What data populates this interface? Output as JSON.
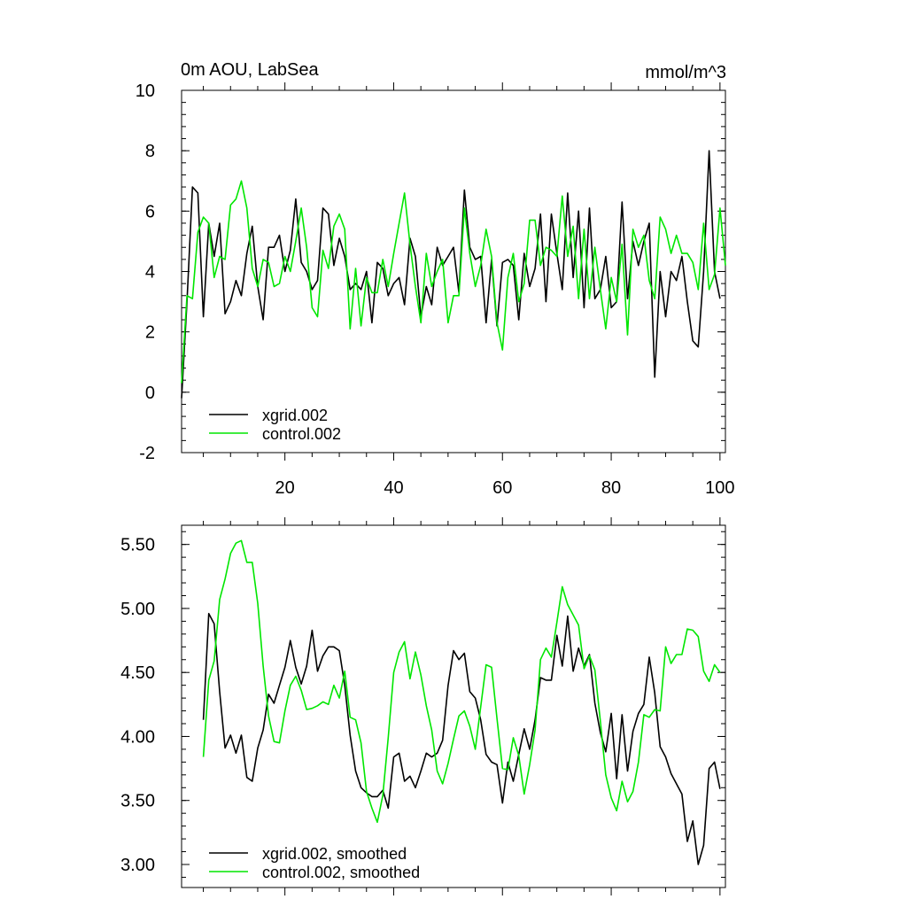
{
  "chart_data": [
    {
      "type": "line",
      "title": "0m AOU, LabSea",
      "units": "mmol/m^3",
      "xlim": [
        1,
        101
      ],
      "ylim": [
        -2,
        10
      ],
      "x_ticks": [
        20,
        40,
        60,
        80,
        100
      ],
      "x_tick_labels": [
        "20",
        "40",
        "60",
        "80",
        "100"
      ],
      "y_ticks": [
        -2,
        0,
        2,
        4,
        6,
        8,
        10
      ],
      "y_tick_labels": [
        "-2",
        "0",
        "2",
        "4",
        "6",
        "8",
        "10"
      ],
      "x_start": 1,
      "legend_position": "bottom-left",
      "grid": false,
      "series": [
        {
          "name": "xgrid.002",
          "color": "#000000",
          "values": [
            -0.2,
            3.0,
            6.8,
            6.6,
            2.5,
            5.6,
            4.5,
            5.6,
            2.6,
            3.0,
            3.7,
            3.2,
            4.6,
            5.5,
            3.5,
            2.4,
            4.8,
            4.8,
            5.2,
            4.0,
            4.7,
            6.4,
            4.3,
            4.0,
            3.4,
            3.7,
            6.1,
            5.9,
            4.2,
            5.1,
            4.5,
            3.4,
            3.6,
            3.4,
            4.0,
            2.3,
            4.3,
            4.1,
            3.2,
            3.6,
            3.8,
            2.9,
            5.1,
            4.5,
            2.5,
            3.5,
            2.9,
            4.8,
            4.2,
            4.5,
            4.8,
            3.3,
            6.7,
            4.8,
            4.4,
            4.5,
            2.3,
            4.4,
            2.2,
            4.3,
            4.4,
            4.2,
            2.4,
            4.6,
            3.5,
            4.1,
            5.9,
            3.0,
            5.9,
            4.6,
            3.4,
            6.6,
            3.8,
            6.0,
            2.8,
            6.1,
            3.1,
            3.4,
            4.5,
            2.8,
            3.0,
            6.3,
            3.1,
            5.0,
            4.2,
            5.0,
            5.6,
            0.5,
            4.0,
            2.5,
            4.0,
            3.7,
            4.5,
            3.0,
            1.7,
            1.5,
            4.0,
            8.0,
            4.0,
            3.1
          ]
        },
        {
          "name": "control.002",
          "color": "#00e600",
          "values": [
            0.3,
            3.2,
            3.1,
            5.3,
            5.8,
            5.6,
            3.8,
            4.5,
            4.4,
            6.2,
            6.4,
            7.0,
            6.1,
            4.1,
            3.5,
            4.4,
            4.3,
            3.5,
            3.6,
            4.5,
            4.0,
            5.0,
            6.1,
            4.8,
            2.8,
            2.5,
            4.7,
            4.1,
            5.5,
            5.9,
            5.4,
            2.1,
            4.1,
            2.2,
            3.8,
            3.3,
            3.3,
            4.4,
            3.5,
            4.6,
            5.6,
            6.6,
            4.9,
            3.5,
            2.3,
            4.6,
            3.5,
            4.0,
            4.4,
            2.3,
            3.2,
            3.2,
            6.1,
            4.6,
            3.5,
            4.2,
            5.4,
            4.5,
            2.3,
            1.4,
            3.8,
            4.6,
            3.0,
            3.6,
            5.7,
            5.7,
            4.2,
            4.8,
            4.7,
            4.5,
            6.5,
            4.5,
            5.5,
            3.1,
            5.4,
            3.1,
            4.8,
            3.4,
            2.1,
            3.8,
            3.0,
            4.9,
            1.9,
            5.4,
            4.8,
            5.2,
            3.7,
            3.1,
            5.8,
            5.4,
            4.6,
            5.2,
            4.6,
            4.6,
            4.3,
            3.4,
            5.6,
            3.4,
            3.9,
            6.1,
            4.2
          ]
        }
      ]
    },
    {
      "type": "line",
      "xlim": [
        1,
        101
      ],
      "ylim": [
        2.82,
        5.65
      ],
      "x_ticks": [
        20,
        40,
        60,
        80,
        100
      ],
      "x_tick_labels": [
        "",
        "",
        "",
        "",
        ""
      ],
      "y_ticks": [
        3.0,
        3.5,
        4.0,
        4.5,
        5.0,
        5.5
      ],
      "y_tick_labels": [
        "3.00",
        "3.50",
        "4.00",
        "4.50",
        "5.00",
        "5.50"
      ],
      "x_start": 5,
      "legend_position": "bottom-left",
      "grid": false,
      "series": [
        {
          "name": "xgrid.002, smoothed",
          "color": "#000000",
          "values": [
            4.13,
            4.96,
            4.88,
            4.35,
            3.91,
            4.01,
            3.87,
            4.01,
            3.68,
            3.65,
            3.91,
            4.05,
            4.33,
            4.26,
            4.4,
            4.54,
            4.75,
            4.54,
            4.41,
            4.55,
            4.83,
            4.51,
            4.63,
            4.7,
            4.7,
            4.67,
            4.4,
            4.01,
            3.73,
            3.6,
            3.56,
            3.53,
            3.53,
            3.58,
            3.44,
            3.84,
            3.87,
            3.65,
            3.69,
            3.6,
            3.73,
            3.87,
            3.84,
            3.87,
            3.97,
            4.4,
            4.67,
            4.6,
            4.65,
            4.35,
            4.3,
            4.13,
            3.86,
            3.8,
            3.78,
            3.48,
            3.8,
            3.65,
            3.86,
            4.06,
            3.9,
            4.13,
            4.46,
            4.44,
            4.44,
            4.79,
            4.55,
            4.94,
            4.51,
            4.69,
            4.55,
            4.64,
            4.26,
            4.03,
            3.88,
            4.18,
            3.67,
            4.17,
            3.73,
            4.04,
            4.18,
            4.25,
            4.62,
            4.34,
            3.92,
            3.84,
            3.71,
            3.63,
            3.55,
            3.18,
            3.34,
            3.0,
            3.15,
            3.75,
            3.8,
            3.59
          ]
        },
        {
          "name": "control.002, smoothed",
          "color": "#00e600",
          "values": [
            3.84,
            4.44,
            4.59,
            5.07,
            5.23,
            5.43,
            5.51,
            5.53,
            5.36,
            5.36,
            5.04,
            4.55,
            4.16,
            3.96,
            3.95,
            4.2,
            4.4,
            4.47,
            4.36,
            4.21,
            4.22,
            4.24,
            4.27,
            4.25,
            4.4,
            4.3,
            4.51,
            4.15,
            4.13,
            3.95,
            3.57,
            3.44,
            3.33,
            3.54,
            3.99,
            4.5,
            4.66,
            4.74,
            4.45,
            4.66,
            4.48,
            4.24,
            4.05,
            3.73,
            3.63,
            3.79,
            3.98,
            4.16,
            4.2,
            4.08,
            3.9,
            4.23,
            4.56,
            4.54,
            4.14,
            3.75,
            3.74,
            3.99,
            3.85,
            3.55,
            3.78,
            4.05,
            4.6,
            4.69,
            4.62,
            4.89,
            5.17,
            5.03,
            4.95,
            4.87,
            4.53,
            4.63,
            4.52,
            4.12,
            3.7,
            3.52,
            3.42,
            3.65,
            3.49,
            3.57,
            3.8,
            4.17,
            4.15,
            4.21,
            4.2,
            4.7,
            4.57,
            4.64,
            4.64,
            4.84,
            4.83,
            4.78,
            4.51,
            4.43,
            4.56,
            4.5
          ]
        }
      ]
    }
  ]
}
